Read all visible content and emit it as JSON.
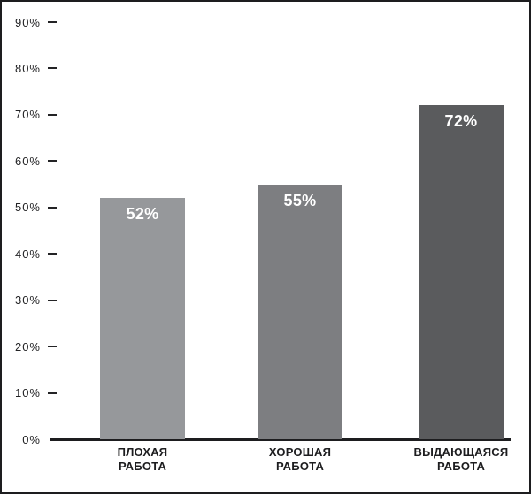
{
  "chart_data": {
    "type": "bar",
    "title": "",
    "xlabel": "",
    "ylabel": "",
    "categories": [
      "ПЛОХАЯ РАБОТА",
      "ХОРОШАЯ РАБОТА",
      "ВЫДАЮЩАЯСЯ РАБОТА"
    ],
    "category_lines": [
      [
        "ПЛОХАЯ",
        "РАБОТА"
      ],
      [
        "ХОРОШАЯ",
        "РАБОТА"
      ],
      [
        "ВЫДАЮЩАЯСЯ",
        "РАБОТА"
      ]
    ],
    "values": [
      52,
      55,
      72
    ],
    "value_labels": [
      "52%",
      "55%",
      "72%"
    ],
    "bar_colors": [
      "#96989b",
      "#7d7e81",
      "#5a5b5d"
    ],
    "value_label_color": "#ffffff",
    "ylim": [
      0,
      90
    ],
    "yticks": [
      0,
      10,
      20,
      30,
      40,
      50,
      60,
      70,
      80,
      90
    ],
    "ytick_labels": [
      "0%",
      "10%",
      "20%",
      "30%",
      "40%",
      "50%",
      "60%",
      "70%",
      "80%",
      "90%"
    ],
    "grid": false,
    "legend": false,
    "axis_color": "#1d1d1f",
    "frame_border_color": "#1d1d1f"
  }
}
